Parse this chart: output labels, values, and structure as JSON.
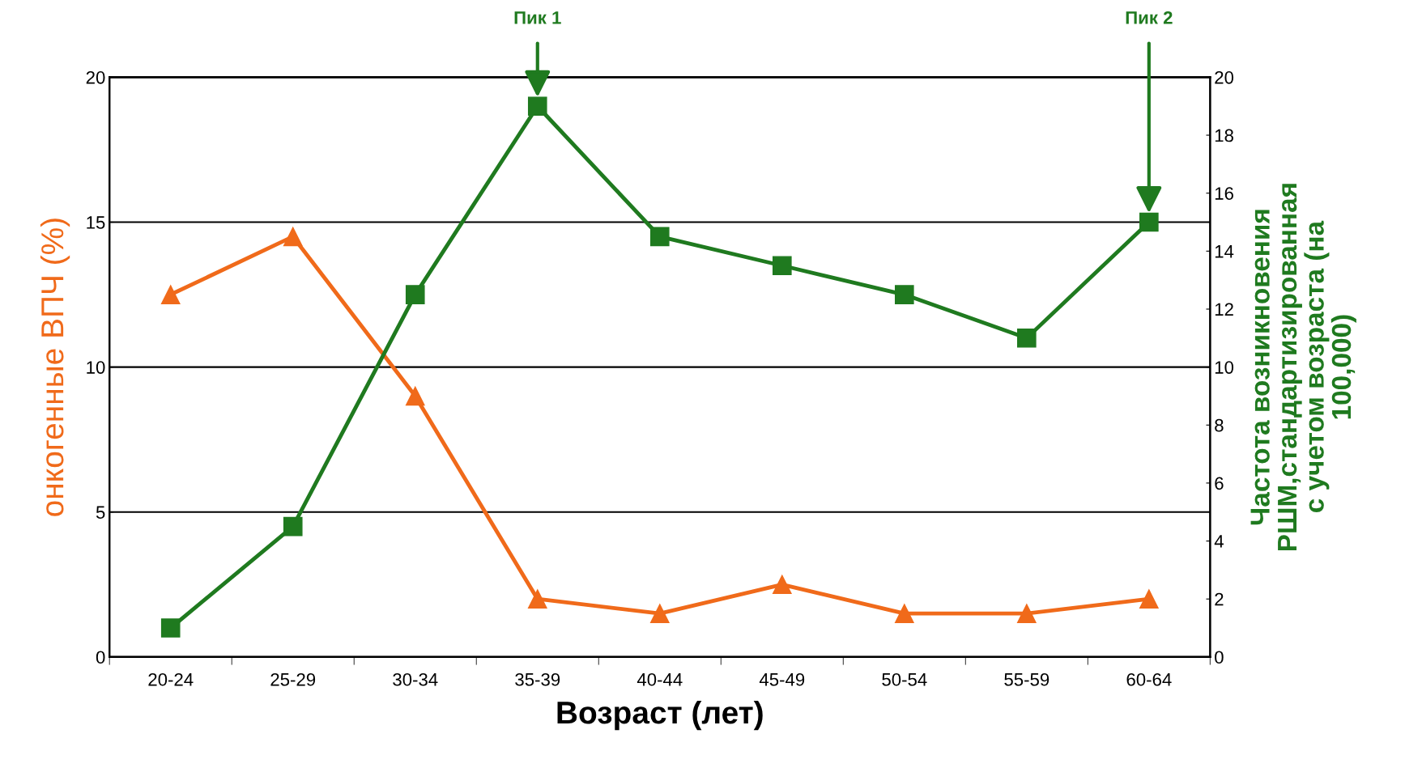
{
  "chart_data": {
    "type": "line",
    "xlabel": "Возраст (лет)",
    "ylabel": "онкогенные ВПЧ (%)",
    "y2label": "Частота возникновения\nРШМ,стандартизированная\nс учетом возраста (на\n100,000)",
    "categories": [
      "20-24",
      "25-29",
      "30-34",
      "35-39",
      "40-44",
      "45-49",
      "50-54",
      "55-59",
      "60-64"
    ],
    "series": [
      {
        "color": "#f06a1a",
        "marker": "triangle",
        "values": [
          12.5,
          14.5,
          9,
          2,
          1.5,
          2.5,
          1.5,
          1.5,
          2
        ]
      },
      {
        "color": "#1f7a1f",
        "marker": "square",
        "axis": "y2",
        "values": [
          1,
          4.5,
          12.5,
          19,
          14.5,
          13.5,
          12.5,
          11,
          15
        ]
      }
    ],
    "ylim": [
      0,
      20
    ],
    "yticks": [
      0,
      5,
      10,
      15,
      20
    ],
    "y2lim": [
      0,
      20
    ],
    "y2ticks": [
      0,
      2,
      4,
      6,
      8,
      10,
      12,
      14,
      16,
      18,
      20
    ],
    "grid": "y",
    "annotations": [
      "Пик 1",
      "Пик 2"
    ]
  }
}
